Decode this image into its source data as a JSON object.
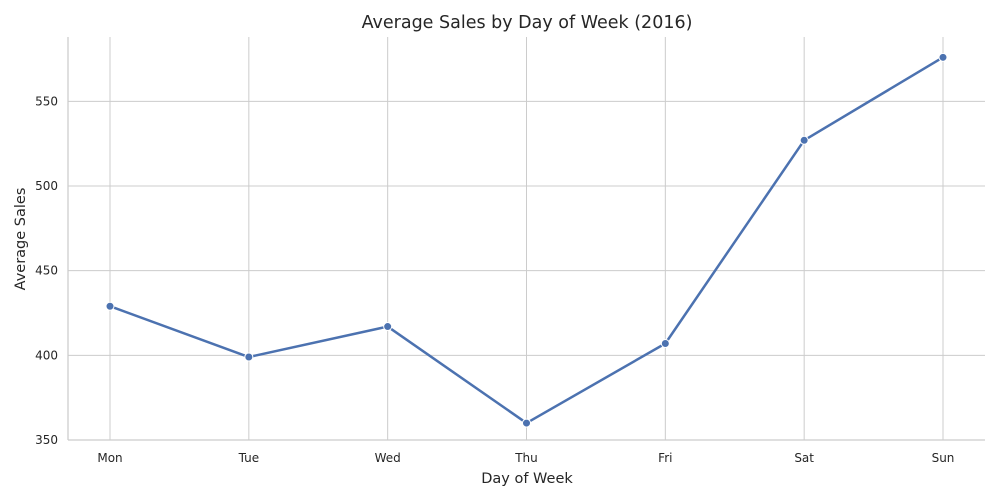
{
  "chart_data": {
    "type": "line",
    "title": "Average Sales by Day of Week (2016)",
    "xlabel": "Day of Week",
    "ylabel": "Average Sales",
    "categories": [
      "Mon",
      "Tue",
      "Wed",
      "Thu",
      "Fri",
      "Sat",
      "Sun"
    ],
    "series": [
      {
        "values": [
          429,
          399,
          417,
          360,
          407,
          527,
          576
        ],
        "color": "#4c72b0"
      }
    ],
    "ylim": [
      350,
      588
    ],
    "yticks": [
      350,
      400,
      450,
      500,
      550
    ],
    "grid": true,
    "legend": "none"
  }
}
